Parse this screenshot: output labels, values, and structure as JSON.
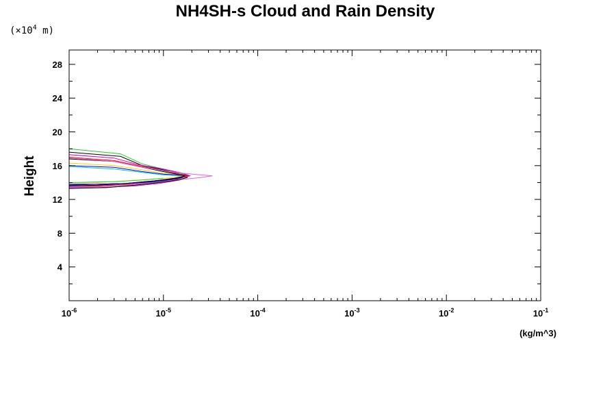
{
  "chart_data": {
    "type": "line",
    "title": "NH4SH-s Cloud and Rain Density",
    "ylabel": "Height",
    "xunit": "(kg/m^3)",
    "y_scale_prefix": "(×10",
    "y_scale_exp": "4",
    "y_scale_suffix": " m)",
    "x_scale": "log",
    "xlim": [
      1e-06,
      0.1
    ],
    "ylim": [
      0,
      29.7
    ],
    "grid": false,
    "x_ticks": [
      {
        "value": 1e-06,
        "base": "10",
        "exp": "-6"
      },
      {
        "value": 1e-05,
        "base": "10",
        "exp": "-5"
      },
      {
        "value": 0.0001,
        "base": "10",
        "exp": "-4"
      },
      {
        "value": 0.001,
        "base": "10",
        "exp": "-3"
      },
      {
        "value": 0.01,
        "base": "10",
        "exp": "-2"
      },
      {
        "value": 0.1,
        "base": "10",
        "exp": "-1"
      }
    ],
    "y_ticks": [
      4,
      8,
      12,
      16,
      20,
      24,
      28
    ],
    "series": [
      {
        "color": "#22cc22",
        "points": [
          [
            1e-06,
            18.0
          ],
          [
            3.5e-06,
            17.4
          ],
          [
            6e-06,
            16.2
          ],
          [
            1e-05,
            15.6
          ],
          [
            1.5e-05,
            15.1
          ],
          [
            1.9e-05,
            14.8
          ],
          [
            1.5e-05,
            14.5
          ],
          [
            9e-06,
            14.1
          ],
          [
            5e-06,
            13.8
          ],
          [
            2.5e-06,
            13.6
          ],
          [
            1e-06,
            13.5
          ]
        ]
      },
      {
        "color": "#000000",
        "points": [
          [
            1e-06,
            17.6
          ],
          [
            3.5e-06,
            17.1
          ],
          [
            6e-06,
            16.0
          ],
          [
            1e-05,
            15.5
          ],
          [
            1.5e-05,
            15.0
          ],
          [
            1.8e-05,
            14.8
          ],
          [
            1.4e-05,
            14.5
          ],
          [
            8e-06,
            14.2
          ],
          [
            4e-06,
            13.9
          ],
          [
            2e-06,
            13.8
          ],
          [
            1e-06,
            13.8
          ]
        ]
      },
      {
        "color": "#cc00cc",
        "points": [
          [
            1e-06,
            17.3
          ],
          [
            3e-06,
            16.9
          ],
          [
            5.5e-06,
            16.1
          ],
          [
            1e-05,
            15.6
          ],
          [
            1.6e-05,
            15.1
          ],
          [
            1.9e-05,
            14.8
          ],
          [
            1.5e-05,
            14.3
          ],
          [
            9e-06,
            13.9
          ],
          [
            5e-06,
            13.6
          ],
          [
            2e-06,
            13.4
          ],
          [
            1e-06,
            13.4
          ]
        ]
      },
      {
        "color": "#ff0000",
        "points": [
          [
            1e-06,
            17.0
          ],
          [
            3e-06,
            16.6
          ],
          [
            6e-06,
            15.9
          ],
          [
            1e-05,
            15.4
          ],
          [
            1.5e-05,
            15.0
          ],
          [
            1.8e-05,
            14.8
          ],
          [
            1.4e-05,
            14.4
          ],
          [
            8e-06,
            14.1
          ],
          [
            4e-06,
            13.8
          ],
          [
            2e-06,
            13.6
          ],
          [
            1e-06,
            13.6
          ]
        ]
      },
      {
        "color": "#000000",
        "points": [
          [
            1e-06,
            16.8
          ],
          [
            3e-06,
            16.5
          ],
          [
            6e-06,
            15.8
          ],
          [
            1e-05,
            15.3
          ],
          [
            1.5e-05,
            14.9
          ],
          [
            1.7e-05,
            14.8
          ],
          [
            1.3e-05,
            14.5
          ],
          [
            8e-06,
            14.2
          ],
          [
            4e-06,
            13.9
          ],
          [
            2e-06,
            13.7
          ],
          [
            1e-06,
            13.6
          ]
        ]
      },
      {
        "color": "#ffcc00",
        "points": [
          [
            1e-06,
            16.3
          ],
          [
            3e-06,
            16.0
          ],
          [
            6e-06,
            15.5
          ],
          [
            1e-05,
            15.1
          ],
          [
            1.4e-05,
            14.9
          ],
          [
            1.6e-05,
            14.8
          ],
          [
            1.3e-05,
            14.6
          ],
          [
            8e-06,
            14.4
          ],
          [
            4e-06,
            14.2
          ],
          [
            2e-06,
            14.0
          ],
          [
            1e-06,
            14.0
          ]
        ]
      },
      {
        "color": "#0000ff",
        "points": [
          [
            1e-06,
            16.0
          ],
          [
            3e-06,
            15.8
          ],
          [
            6e-06,
            15.3
          ],
          [
            1e-05,
            15.0
          ],
          [
            1.4e-05,
            14.9
          ],
          [
            1.7e-05,
            14.8
          ]
        ]
      },
      {
        "color": "#00cccc",
        "points": [
          [
            1e-06,
            15.9
          ],
          [
            3e-06,
            15.6
          ],
          [
            6e-06,
            15.2
          ],
          [
            1e-05,
            14.9
          ],
          [
            1.5e-05,
            14.8
          ]
        ]
      },
      {
        "color": "#dd66dd",
        "points": [
          [
            1e-06,
            16.9
          ],
          [
            3e-06,
            16.5
          ],
          [
            6e-06,
            15.8
          ],
          [
            1e-05,
            15.4
          ],
          [
            1.6e-05,
            15.1
          ],
          [
            2.5e-05,
            14.9
          ],
          [
            3.3e-05,
            14.8
          ],
          [
            2.5e-05,
            14.6
          ],
          [
            1.4e-05,
            14.3
          ],
          [
            8e-06,
            14.0
          ],
          [
            4e-06,
            13.7
          ],
          [
            2e-06,
            13.5
          ],
          [
            1e-06,
            13.5
          ]
        ]
      },
      {
        "color": "#0000ff",
        "points": [
          [
            1e-06,
            13.7
          ],
          [
            2e-06,
            13.8
          ],
          [
            4e-06,
            13.9
          ],
          [
            8e-06,
            14.1
          ],
          [
            1.3e-05,
            14.4
          ],
          [
            1.6e-05,
            14.6
          ]
        ]
      },
      {
        "color": "#22cc22",
        "points": [
          [
            1e-06,
            14.0
          ],
          [
            3e-06,
            14.1
          ],
          [
            6e-06,
            14.3
          ],
          [
            1e-05,
            14.5
          ]
        ]
      },
      {
        "color": "#000000",
        "points": [
          [
            1e-06,
            13.3
          ],
          [
            2.5e-06,
            13.4
          ],
          [
            5e-06,
            13.7
          ],
          [
            9e-06,
            14.0
          ],
          [
            1.4e-05,
            14.3
          ],
          [
            1.8e-05,
            14.6
          ]
        ]
      }
    ]
  }
}
